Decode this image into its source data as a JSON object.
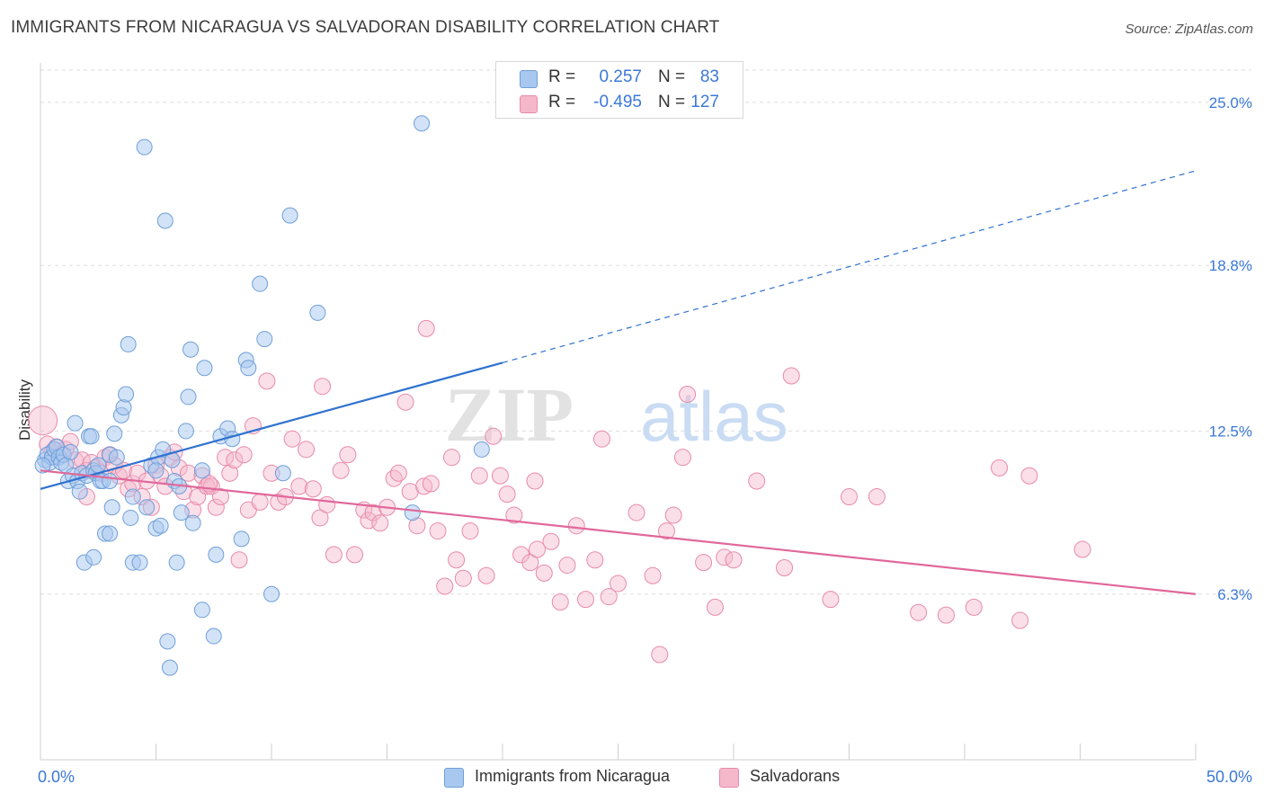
{
  "header": {
    "title": "IMMIGRANTS FROM NICARAGUA VS SALVADORAN DISABILITY CORRELATION CHART",
    "source": "Source: ZipAtlas.com"
  },
  "watermark": {
    "part1": "ZIP",
    "part2": "atlas"
  },
  "legend_top": {
    "rows": [
      {
        "r_label": "R =",
        "r_value": "0.257",
        "n_label": "N =",
        "n_value": "83"
      },
      {
        "r_label": "R =",
        "r_value": "-0.495",
        "n_label": "N =",
        "n_value": "127"
      }
    ]
  },
  "legend_bottom": {
    "items": [
      {
        "label": "Immigrants from Nicaragua"
      },
      {
        "label": "Salvadorans"
      }
    ]
  },
  "colors": {
    "blue_fill": "#a8c8f0",
    "blue_stroke": "#6f9fd8",
    "blue_line": "#2f72d0",
    "pink_fill": "#f5b8cb",
    "pink_stroke": "#e88aab",
    "pink_line": "#e0689a",
    "axis_text": "#3b78d8",
    "grid": "#dddddd"
  },
  "chart_data": {
    "type": "scatter",
    "title": "IMMIGRANTS FROM NICARAGUA VS SALVADORAN DISABILITY CORRELATION CHART",
    "xlabel": "",
    "ylabel": "Disability",
    "xlim": [
      0,
      50
    ],
    "ylim": [
      0,
      26.5
    ],
    "x_tick_labels": [
      "0.0%",
      "50.0%"
    ],
    "y_ticks": [
      6.3,
      12.5,
      18.8,
      25.0
    ],
    "y_tick_labels": [
      "6.3%",
      "12.5%",
      "18.8%",
      "25.0%"
    ],
    "grid": "horizontal dashed",
    "series": [
      {
        "name": "Immigrants from Nicaragua",
        "color": "#a8c8f0",
        "trend": {
          "x": [
            0,
            20
          ],
          "y": [
            10.3,
            15.1
          ],
          "extended_to": [
            50,
            22.4
          ]
        },
        "points": [
          [
            0.2,
            11.4
          ],
          [
            0.3,
            11.6
          ],
          [
            0.4,
            11.3
          ],
          [
            0.5,
            11.5
          ],
          [
            0.6,
            11.8
          ],
          [
            0.7,
            11.9
          ],
          [
            0.8,
            11.5
          ],
          [
            0.9,
            11.3
          ],
          [
            1.0,
            11.6
          ],
          [
            1.1,
            11.2
          ],
          [
            1.2,
            10.6
          ],
          [
            1.3,
            11.7
          ],
          [
            1.4,
            10.8
          ],
          [
            1.5,
            12.8
          ],
          [
            1.6,
            10.6
          ],
          [
            1.7,
            10.2
          ],
          [
            1.8,
            10.9
          ],
          [
            2.0,
            10.8
          ],
          [
            2.1,
            12.3
          ],
          [
            2.2,
            12.3
          ],
          [
            2.3,
            11.0
          ],
          [
            2.4,
            10.9
          ],
          [
            2.5,
            11.2
          ],
          [
            2.6,
            10.6
          ],
          [
            2.7,
            10.6
          ],
          [
            2.8,
            8.6
          ],
          [
            3.0,
            8.6
          ],
          [
            3.0,
            11.6
          ],
          [
            3.1,
            9.6
          ],
          [
            3.2,
            12.4
          ],
          [
            3.3,
            11.5
          ],
          [
            3.5,
            13.1
          ],
          [
            3.6,
            13.4
          ],
          [
            3.7,
            13.9
          ],
          [
            3.8,
            15.8
          ],
          [
            3.9,
            9.2
          ],
          [
            4.0,
            7.5
          ],
          [
            4.3,
            7.5
          ],
          [
            4.5,
            23.3
          ],
          [
            4.6,
            9.6
          ],
          [
            4.8,
            11.2
          ],
          [
            5.0,
            8.8
          ],
          [
            5.1,
            11.5
          ],
          [
            5.2,
            8.9
          ],
          [
            5.3,
            11.8
          ],
          [
            5.4,
            20.5
          ],
          [
            5.5,
            4.5
          ],
          [
            5.6,
            3.5
          ],
          [
            5.7,
            11.4
          ],
          [
            5.8,
            10.6
          ],
          [
            5.9,
            7.5
          ],
          [
            6.1,
            9.4
          ],
          [
            6.3,
            12.5
          ],
          [
            6.4,
            13.8
          ],
          [
            6.5,
            15.6
          ],
          [
            6.6,
            9.0
          ],
          [
            7.0,
            5.7
          ],
          [
            7.1,
            14.9
          ],
          [
            7.5,
            4.7
          ],
          [
            7.6,
            7.8
          ],
          [
            7.8,
            12.3
          ],
          [
            8.1,
            12.6
          ],
          [
            8.3,
            12.2
          ],
          [
            8.7,
            8.4
          ],
          [
            8.9,
            15.2
          ],
          [
            9.0,
            14.9
          ],
          [
            9.5,
            18.1
          ],
          [
            9.7,
            16.0
          ],
          [
            10.0,
            6.3
          ],
          [
            10.5,
            10.9
          ],
          [
            10.8,
            20.7
          ],
          [
            12.0,
            17.0
          ],
          [
            16.1,
            9.4
          ],
          [
            16.5,
            24.2
          ],
          [
            19.1,
            11.8
          ],
          [
            1.9,
            7.5
          ],
          [
            2.3,
            7.7
          ],
          [
            3.0,
            10.6
          ],
          [
            4.0,
            10.0
          ],
          [
            5.0,
            11.0
          ],
          [
            6.0,
            10.4
          ],
          [
            7.0,
            11.0
          ],
          [
            0.1,
            11.2
          ]
        ]
      },
      {
        "name": "Salvadorans",
        "color": "#f5b8cb",
        "trend": {
          "x": [
            0,
            50
          ],
          "y": [
            11.0,
            6.3
          ]
        },
        "points": [
          [
            0.1,
            12.9
          ],
          [
            0.3,
            12.0
          ],
          [
            0.5,
            11.7
          ],
          [
            0.7,
            11.9
          ],
          [
            0.9,
            11.6
          ],
          [
            1.1,
            11.8
          ],
          [
            1.3,
            12.1
          ],
          [
            1.5,
            11.4
          ],
          [
            1.8,
            11.4
          ],
          [
            2.0,
            11.0
          ],
          [
            2.2,
            11.3
          ],
          [
            2.4,
            11.1
          ],
          [
            2.6,
            10.9
          ],
          [
            2.8,
            11.5
          ],
          [
            3.0,
            11.6
          ],
          [
            3.2,
            11.2
          ],
          [
            3.4,
            10.8
          ],
          [
            3.6,
            11.0
          ],
          [
            3.8,
            10.3
          ],
          [
            4.0,
            10.5
          ],
          [
            4.2,
            10.9
          ],
          [
            4.4,
            10.0
          ],
          [
            4.6,
            10.6
          ],
          [
            4.8,
            9.6
          ],
          [
            5.0,
            11.2
          ],
          [
            5.2,
            10.8
          ],
          [
            5.4,
            10.4
          ],
          [
            5.6,
            11.5
          ],
          [
            5.8,
            11.7
          ],
          [
            6.0,
            11.1
          ],
          [
            6.2,
            10.2
          ],
          [
            6.4,
            10.9
          ],
          [
            6.6,
            9.5
          ],
          [
            6.8,
            10.0
          ],
          [
            7.0,
            10.8
          ],
          [
            7.2,
            10.4
          ],
          [
            7.4,
            10.4
          ],
          [
            7.6,
            9.6
          ],
          [
            7.8,
            10.0
          ],
          [
            8.0,
            11.5
          ],
          [
            8.2,
            10.9
          ],
          [
            8.4,
            11.4
          ],
          [
            8.6,
            7.6
          ],
          [
            8.8,
            11.6
          ],
          [
            9.0,
            9.5
          ],
          [
            9.2,
            12.7
          ],
          [
            9.5,
            9.8
          ],
          [
            9.8,
            14.4
          ],
          [
            10.0,
            10.9
          ],
          [
            10.3,
            9.8
          ],
          [
            10.6,
            10.0
          ],
          [
            10.9,
            12.2
          ],
          [
            11.2,
            10.4
          ],
          [
            11.5,
            11.8
          ],
          [
            11.8,
            10.3
          ],
          [
            12.1,
            9.2
          ],
          [
            12.4,
            9.7
          ],
          [
            12.7,
            7.8
          ],
          [
            13.0,
            11.0
          ],
          [
            13.3,
            11.6
          ],
          [
            13.6,
            7.8
          ],
          [
            14.0,
            9.5
          ],
          [
            14.2,
            9.1
          ],
          [
            14.4,
            9.4
          ],
          [
            14.7,
            9.0
          ],
          [
            15.0,
            9.6
          ],
          [
            15.3,
            10.7
          ],
          [
            15.5,
            10.9
          ],
          [
            15.8,
            13.6
          ],
          [
            16.0,
            10.2
          ],
          [
            16.3,
            8.9
          ],
          [
            16.6,
            10.4
          ],
          [
            16.9,
            10.5
          ],
          [
            17.2,
            8.7
          ],
          [
            17.5,
            6.6
          ],
          [
            17.8,
            11.5
          ],
          [
            18.0,
            7.6
          ],
          [
            18.3,
            6.9
          ],
          [
            18.6,
            8.7
          ],
          [
            19.0,
            10.8
          ],
          [
            19.3,
            7.0
          ],
          [
            19.6,
            12.3
          ],
          [
            19.9,
            10.8
          ],
          [
            20.2,
            10.1
          ],
          [
            20.5,
            9.3
          ],
          [
            20.8,
            7.8
          ],
          [
            21.2,
            7.5
          ],
          [
            21.5,
            8.0
          ],
          [
            21.8,
            7.1
          ],
          [
            22.1,
            8.3
          ],
          [
            22.5,
            6.0
          ],
          [
            22.8,
            7.4
          ],
          [
            23.2,
            8.9
          ],
          [
            23.6,
            6.1
          ],
          [
            24.0,
            7.6
          ],
          [
            24.3,
            12.2
          ],
          [
            24.6,
            6.2
          ],
          [
            25.0,
            6.7
          ],
          [
            25.8,
            9.4
          ],
          [
            26.5,
            7.0
          ],
          [
            26.8,
            4.0
          ],
          [
            27.1,
            8.7
          ],
          [
            27.4,
            9.3
          ],
          [
            27.8,
            11.5
          ],
          [
            28.0,
            13.9
          ],
          [
            28.7,
            7.5
          ],
          [
            29.2,
            5.8
          ],
          [
            29.6,
            7.7
          ],
          [
            30.0,
            7.6
          ],
          [
            31.0,
            10.6
          ],
          [
            32.2,
            7.3
          ],
          [
            32.5,
            14.6
          ],
          [
            34.2,
            6.1
          ],
          [
            35.0,
            10.0
          ],
          [
            36.2,
            10.0
          ],
          [
            38.0,
            5.6
          ],
          [
            39.2,
            5.5
          ],
          [
            40.4,
            5.8
          ],
          [
            41.5,
            11.1
          ],
          [
            42.4,
            5.3
          ],
          [
            42.8,
            10.8
          ],
          [
            45.1,
            8.0
          ],
          [
            16.7,
            16.4
          ],
          [
            12.2,
            14.2
          ],
          [
            21.4,
            10.6
          ],
          [
            7.3,
            10.5
          ],
          [
            2.0,
            10.0
          ]
        ]
      }
    ]
  }
}
